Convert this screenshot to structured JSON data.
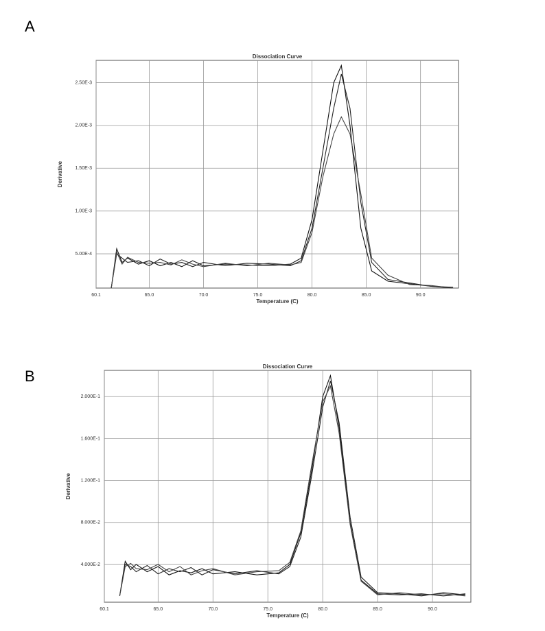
{
  "chart_data": [
    {
      "panel": "A",
      "type": "line",
      "title": "Dissociation Curve",
      "x_label": "Temperature (C)",
      "y_label": "Derivative",
      "grid": true,
      "xlim": [
        60.1,
        93.5
      ],
      "ylim": [
        0.0001,
        0.00276
      ],
      "xticks": [
        60.1,
        {
          "value": 65,
          "label": "65.0"
        },
        {
          "value": 70,
          "label": "70.0"
        },
        {
          "value": 75,
          "label": "75.0"
        },
        {
          "value": 80,
          "label": "80.0"
        },
        {
          "value": 85,
          "label": "85.0"
        },
        {
          "value": 90,
          "label": "90.0"
        }
      ],
      "yticks": [
        {
          "value": 0.0025,
          "label": "2.50E-3"
        },
        {
          "value": 0.002,
          "label": "2.00E-3"
        },
        {
          "value": 0.0015,
          "label": "1.50E-3"
        },
        {
          "value": 0.001,
          "label": "1.00E-3"
        },
        {
          "value": 0.0005,
          "label": "5.00E-4"
        }
      ],
      "x": [
        61.5,
        62,
        62.5,
        63,
        64,
        65,
        66,
        67,
        68,
        69,
        70,
        72,
        74,
        76,
        78,
        79,
        80,
        81,
        82,
        82.7,
        83.5,
        84.5,
        85.5,
        87,
        89,
        91,
        93
      ],
      "series": [
        {
          "color": "#111",
          "values": [
            0.0001,
            0.00056,
            0.0004,
            0.00045,
            0.00038,
            0.00042,
            0.00036,
            0.0004,
            0.00035,
            0.00042,
            0.00036,
            0.00038,
            0.00037,
            0.00036,
            0.00038,
            0.00045,
            0.0009,
            0.0017,
            0.0025,
            0.0027,
            0.002,
            0.0008,
            0.0003,
            0.00018,
            0.00015,
            0.00012,
            0.00011
          ]
        },
        {
          "color": "#222",
          "values": [
            0.0001,
            0.0005,
            0.00045,
            0.0004,
            0.00042,
            0.00036,
            0.00044,
            0.00038,
            0.0004,
            0.00035,
            0.0004,
            0.00036,
            0.00039,
            0.00038,
            0.00036,
            0.00042,
            0.0008,
            0.0015,
            0.0022,
            0.0026,
            0.0022,
            0.0011,
            0.0004,
            0.0002,
            0.00016,
            0.00012,
            0.0001
          ]
        },
        {
          "color": "#444",
          "values": [
            0.0001,
            0.00052,
            0.00038,
            0.00046,
            0.0004,
            0.00039,
            0.0004,
            0.00037,
            0.00043,
            0.00038,
            0.00035,
            0.00039,
            0.00036,
            0.00039,
            0.00037,
            0.0004,
            0.00075,
            0.0014,
            0.0019,
            0.0021,
            0.0019,
            0.0012,
            0.00045,
            0.00025,
            0.00014,
            0.00013,
            0.0001
          ]
        }
      ]
    },
    {
      "panel": "B",
      "type": "line",
      "title": "Dissociation Curve",
      "x_label": "Temperature (C)",
      "y_label": "Derivative",
      "grid": true,
      "xlim": [
        60.1,
        93.5
      ],
      "ylim": [
        0.004,
        0.225
      ],
      "xticks": [
        60.1,
        {
          "value": 65,
          "label": "65.0"
        },
        {
          "value": 70,
          "label": "70.0"
        },
        {
          "value": 75,
          "label": "75.0"
        },
        {
          "value": 80,
          "label": "80.0"
        },
        {
          "value": 85,
          "label": "85.0"
        },
        {
          "value": 90,
          "label": "90.0"
        }
      ],
      "yticks": [
        {
          "value": 0.2,
          "label": "2.000E-1"
        },
        {
          "value": 0.16,
          "label": "1.600E-1"
        },
        {
          "value": 0.12,
          "label": "1.200E-1"
        },
        {
          "value": 0.08,
          "label": "8.000E-2"
        },
        {
          "value": 0.04,
          "label": "4.000E-2"
        }
      ],
      "x": [
        61.5,
        62,
        62.5,
        63,
        64,
        65,
        66,
        67,
        68,
        69,
        70,
        72,
        74,
        76,
        77,
        78,
        79,
        80,
        80.7,
        81.5,
        82.5,
        83.5,
        85,
        87,
        89,
        91,
        93
      ],
      "series": [
        {
          "color": "#111",
          "values": [
            0.01,
            0.043,
            0.035,
            0.04,
            0.033,
            0.038,
            0.03,
            0.034,
            0.032,
            0.036,
            0.031,
            0.033,
            0.03,
            0.032,
            0.04,
            0.07,
            0.13,
            0.2,
            0.22,
            0.17,
            0.08,
            0.025,
            0.012,
            0.011,
            0.012,
            0.01,
            0.012
          ]
        },
        {
          "color": "#222",
          "values": [
            0.01,
            0.04,
            0.038,
            0.033,
            0.039,
            0.031,
            0.036,
            0.033,
            0.037,
            0.03,
            0.035,
            0.031,
            0.034,
            0.031,
            0.038,
            0.066,
            0.125,
            0.19,
            0.215,
            0.175,
            0.085,
            0.028,
            0.013,
            0.012,
            0.01,
            0.013,
            0.011
          ]
        },
        {
          "color": "#444",
          "values": [
            0.01,
            0.038,
            0.041,
            0.036,
            0.035,
            0.04,
            0.033,
            0.038,
            0.03,
            0.034,
            0.036,
            0.03,
            0.033,
            0.034,
            0.042,
            0.072,
            0.135,
            0.195,
            0.21,
            0.165,
            0.078,
            0.024,
            0.011,
            0.013,
            0.011,
            0.012,
            0.01
          ]
        }
      ]
    }
  ]
}
